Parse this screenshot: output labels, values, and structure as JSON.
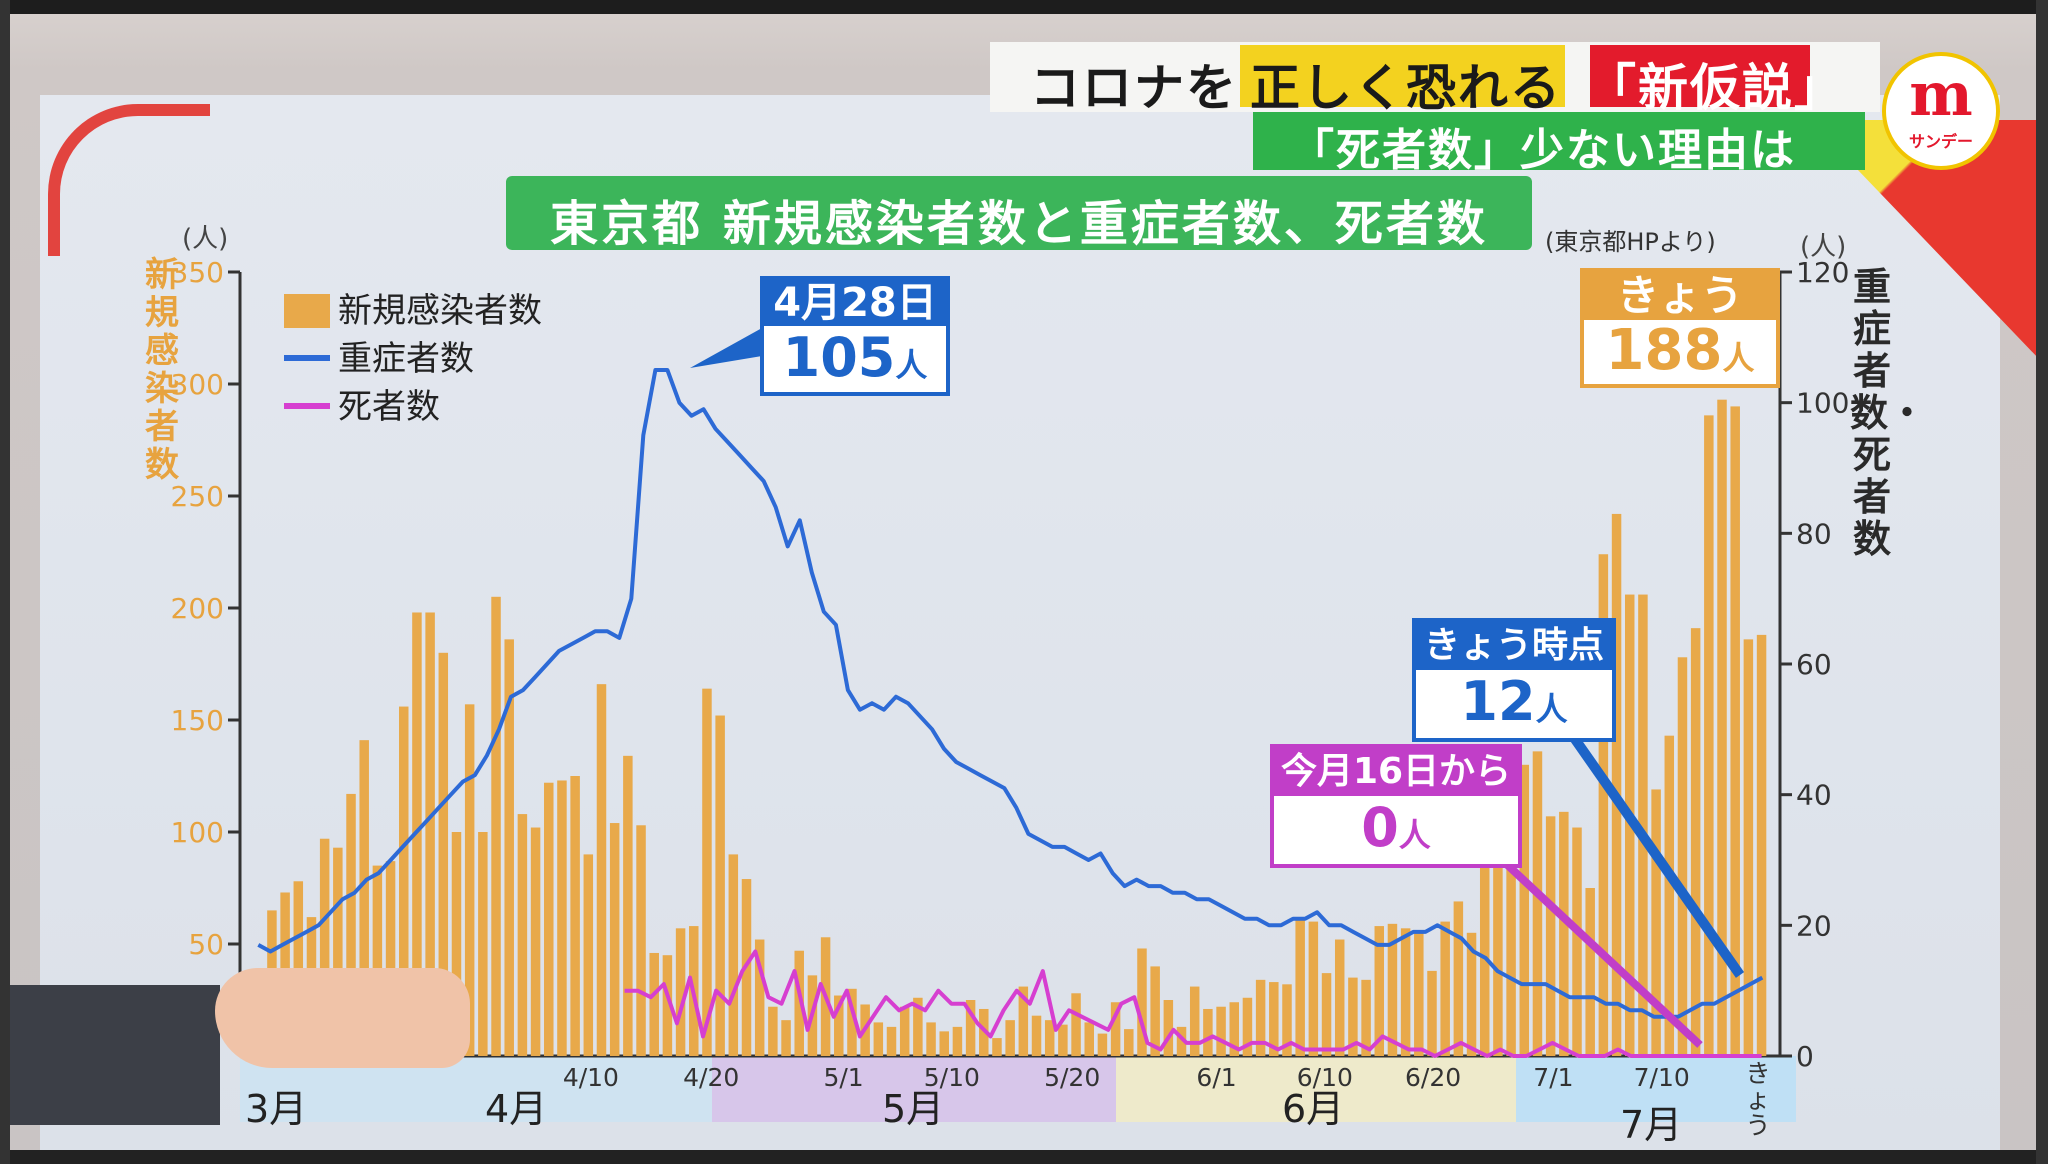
{
  "header": {
    "part1": "コロナを",
    "part2": "正しく恐れる",
    "part3": "「新仮説」",
    "sub": "「死者数」少ない理由は",
    "logo_text": "サンデー"
  },
  "chart_data": {
    "type": "bar",
    "title": "東京都  新規感染者数と重症者数、死者数",
    "source": "(東京都HPより)",
    "ylabel_left": "新規感染者数",
    "ylabel_right": "重症者数・死者数",
    "unit_left": "(人)",
    "unit_right": "(人)",
    "ylim_left": [
      0,
      350
    ],
    "ylim_right": [
      0,
      120
    ],
    "yticks_left": [
      "50",
      "100",
      "150",
      "200",
      "250",
      "300",
      "350"
    ],
    "yticks_right": [
      "0",
      "20",
      "40",
      "60",
      "80",
      "100",
      "120"
    ],
    "legend": [
      "新規感染者数",
      "重症者数",
      "死者数"
    ],
    "legend_position": "top-left",
    "colors": {
      "bars": "#e8a94a",
      "severe": "#2d6ad6",
      "deaths": "#d63fd0"
    },
    "x_tick_labels": [
      "4/10",
      "4/20",
      "5/1",
      "5/10",
      "5/20",
      "6/1",
      "6/10",
      "6/20",
      "7/1",
      "7/10",
      "きょう"
    ],
    "months": [
      "3月",
      "4月",
      "5月",
      "6月",
      "7月"
    ],
    "new_cases": [
      20,
      65,
      73,
      78,
      62,
      97,
      93,
      117,
      141,
      85,
      87,
      156,
      198,
      198,
      180,
      100,
      157,
      100,
      205,
      186,
      108,
      102,
      122,
      123,
      125,
      90,
      166,
      104,
      134,
      103,
      46,
      45,
      57,
      58,
      164,
      152,
      90,
      79,
      52,
      22,
      16,
      47,
      36,
      53,
      27,
      30,
      23,
      15,
      13,
      22,
      26,
      15,
      11,
      13,
      25,
      21,
      8,
      16,
      31,
      18,
      16,
      14,
      28,
      15,
      10,
      24,
      12,
      48,
      40,
      25,
      13,
      31,
      21,
      22,
      24,
      26,
      34,
      33,
      32,
      61,
      60,
      37,
      52,
      35,
      34,
      58,
      59,
      57,
      56,
      38,
      60,
      69,
      55,
      116,
      103,
      118,
      130,
      136,
      107,
      109,
      102,
      75,
      224,
      242,
      206,
      206,
      119,
      143,
      178,
      191,
      286,
      293,
      290,
      186,
      188
    ],
    "severe": [
      17,
      16,
      17,
      18,
      19,
      20,
      22,
      24,
      25,
      27,
      28,
      30,
      32,
      34,
      36,
      38,
      40,
      42,
      43,
      46,
      50,
      55,
      56,
      58,
      60,
      62,
      63,
      64,
      65,
      65,
      64,
      70,
      95,
      105,
      105,
      100,
      98,
      99,
      96,
      94,
      92,
      90,
      88,
      84,
      78,
      82,
      74,
      68,
      66,
      56,
      53,
      54,
      53,
      55,
      54,
      52,
      50,
      47,
      45,
      44,
      43,
      42,
      41,
      38,
      34,
      33,
      32,
      32,
      31,
      30,
      31,
      28,
      26,
      27,
      26,
      26,
      25,
      25,
      24,
      24,
      23,
      22,
      21,
      21,
      20,
      20,
      21,
      21,
      22,
      20,
      20,
      19,
      18,
      17,
      17,
      18,
      19,
      19,
      20,
      19,
      18,
      16,
      15,
      13,
      12,
      11,
      11,
      11,
      10,
      9,
      9,
      9,
      8,
      8,
      7,
      7,
      6,
      6,
      6,
      7,
      8,
      8,
      9,
      10,
      11,
      12
    ],
    "deaths": [
      0,
      0,
      0,
      0,
      0,
      0,
      0,
      0,
      0,
      0,
      0,
      0,
      0,
      0,
      0,
      0,
      0,
      0,
      0,
      0,
      0,
      0,
      0,
      0,
      0,
      0,
      0,
      0,
      10,
      10,
      9,
      11,
      5,
      12,
      3,
      10,
      8,
      13,
      16,
      9,
      8,
      13,
      4,
      11,
      6,
      10,
      3,
      6,
      9,
      7,
      8,
      7,
      10,
      8,
      8,
      5,
      3,
      7,
      10,
      8,
      13,
      4,
      7,
      6,
      5,
      4,
      8,
      9,
      2,
      1,
      4,
      2,
      2,
      3,
      2,
      1,
      2,
      2,
      1,
      2,
      1,
      1,
      1,
      1,
      2,
      1,
      3,
      2,
      1,
      1,
      0,
      1,
      2,
      1,
      0,
      1,
      0,
      0,
      1,
      2,
      1,
      0,
      0,
      0,
      1,
      0,
      0,
      0,
      0,
      0,
      0,
      0,
      0,
      0,
      0,
      0
    ]
  },
  "callouts": {
    "peak": {
      "head": "4月28日",
      "body": "105",
      "unit": "人"
    },
    "today_cases": {
      "head": "きょう",
      "body": "188",
      "unit": "人"
    },
    "today_severe": {
      "head": "きょう時点",
      "body": "12",
      "unit": "人"
    },
    "deaths_zero": {
      "head": "今月16日から",
      "body": "0",
      "unit": "人"
    }
  }
}
